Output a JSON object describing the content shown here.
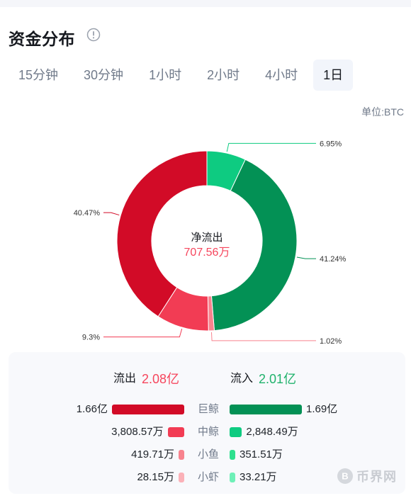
{
  "header": {
    "title": "资金分布",
    "info_icon": "info-circle-icon"
  },
  "tabs": [
    {
      "label": "15分钟",
      "active": false
    },
    {
      "label": "30分钟",
      "active": false
    },
    {
      "label": "1小时",
      "active": false
    },
    {
      "label": "2小时",
      "active": false
    },
    {
      "label": "4小时",
      "active": false
    },
    {
      "label": "1日",
      "active": true
    }
  ],
  "unit": "单位:BTC",
  "center": {
    "label": "净流出",
    "value": "707.56万"
  },
  "chart_data": {
    "type": "pie",
    "style": "donut",
    "slices": [
      {
        "label": "6.95%",
        "value": 6.95,
        "color": "#0ecb81"
      },
      {
        "label": "41.24%",
        "value": 41.24,
        "color": "#039155"
      },
      {
        "label": "1.02%",
        "value": 1.02,
        "color": "#f8838e"
      },
      {
        "label": "9.3%",
        "value": 9.3,
        "color": "#f23c54"
      },
      {
        "label": "40.47%",
        "value": 40.47,
        "color": "#d20b27"
      }
    ]
  },
  "summary": {
    "outflow_label": "流出",
    "outflow_value": "2.08亿",
    "inflow_label": "流入",
    "inflow_value": "2.01亿",
    "out_color": "#f6465d",
    "in_color": "#20b26c"
  },
  "rows": [
    {
      "category": "巨鲸",
      "out": "1.66亿",
      "in": "1.69亿",
      "out_color": "#d20b27",
      "in_color": "#039155",
      "out_frac": 1.0,
      "in_frac": 1.0
    },
    {
      "category": "中鲸",
      "out": "3,808.57万",
      "in": "2,848.49万",
      "out_color": "#f23c54",
      "in_color": "#0ecb81",
      "out_frac": 0.23,
      "in_frac": 0.17
    },
    {
      "category": "小鱼",
      "out": "419.71万",
      "in": "351.51万",
      "out_color": "#f8838e",
      "in_color": "#2ee08f",
      "out_frac": 0.025,
      "in_frac": 0.021
    },
    {
      "category": "小虾",
      "out": "28.15万",
      "in": "33.21万",
      "out_color": "#fbb1b8",
      "in_color": "#6ff0b8",
      "out_frac": 0.002,
      "in_frac": 0.002
    }
  ],
  "watermark": {
    "text": "币界网",
    "icon": "coin-logo-icon"
  }
}
